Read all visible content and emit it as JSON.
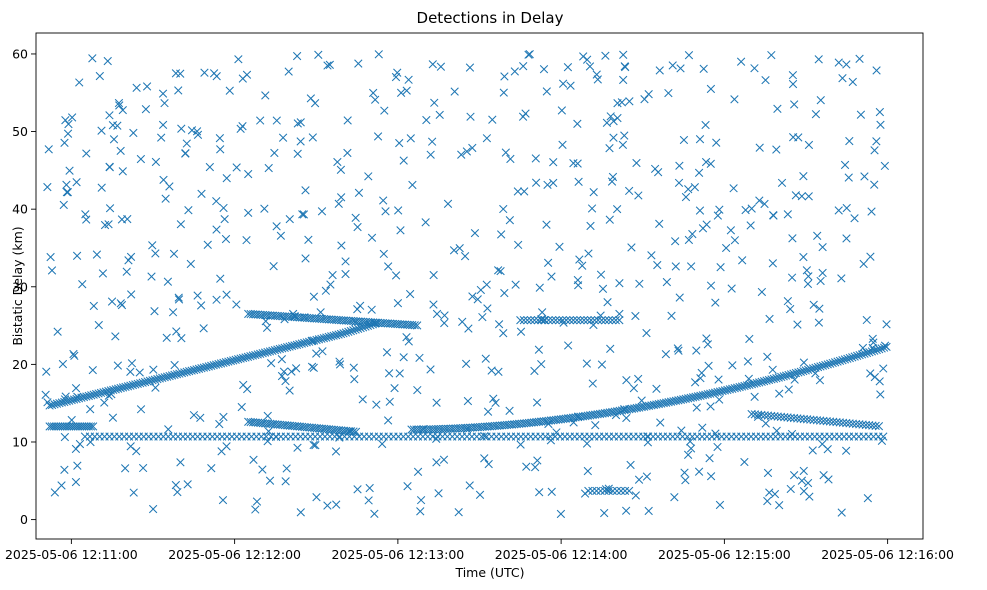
{
  "chart_data": {
    "type": "scatter",
    "title": "Detections in Delay",
    "xlabel": "Time (UTC)",
    "ylabel": "Bistatic Delay (km)",
    "marker": "x",
    "color": "#1f77b4",
    "grid": false,
    "legend": "none",
    "x_range": [
      "2025-05-06 12:10:47",
      "2025-05-06 12:16:13"
    ],
    "ylim": [
      -2.5,
      62.7
    ],
    "x_ticks": [
      {
        "t": "2025-05-06 12:11:00",
        "label": "2025-05-06 12:11:00"
      },
      {
        "t": "2025-05-06 12:12:00",
        "label": "2025-05-06 12:12:00"
      },
      {
        "t": "2025-05-06 12:13:00",
        "label": "2025-05-06 12:13:00"
      },
      {
        "t": "2025-05-06 12:14:00",
        "label": "2025-05-06 12:14:00"
      },
      {
        "t": "2025-05-06 12:15:00",
        "label": "2025-05-06 12:15:00"
      },
      {
        "t": "2025-05-06 12:16:00",
        "label": "2025-05-06 12:16:00"
      }
    ],
    "y_ticks": [
      0,
      10,
      20,
      30,
      40,
      50,
      60
    ],
    "tracks": [
      {
        "t_start": "2025-05-06 12:10:52",
        "t_end": "2025-05-06 12:12:40",
        "y_start": 14.7,
        "y_end": 24.0,
        "curve": 1.0,
        "step_s": 0.9
      },
      {
        "t_start": "2025-05-06 12:12:40",
        "t_end": "2025-05-06 12:12:53",
        "y_start": 24.0,
        "y_end": 25.4,
        "curve": 1.0,
        "step_s": 0.9
      },
      {
        "t_start": "2025-05-06 12:12:05",
        "t_end": "2025-05-06 12:13:08",
        "y_start": 26.5,
        "y_end": 25.0,
        "curve": 1.0,
        "step_s": 0.9
      },
      {
        "t_start": "2025-05-06 12:12:05",
        "t_end": "2025-05-06 12:12:45",
        "y_start": 12.6,
        "y_end": 11.3,
        "curve": 1.0,
        "step_s": 0.9
      },
      {
        "t_start": "2025-05-06 12:13:05",
        "t_end": "2025-05-06 12:16:00",
        "y_start": 11.6,
        "y_end": 22.3,
        "curve": 1.8,
        "step_s": 0.9
      },
      {
        "t_start": "2025-05-06 12:15:10",
        "t_end": "2025-05-06 12:15:58",
        "y_start": 13.6,
        "y_end": 12.0,
        "curve": 1.0,
        "step_s": 1.2
      },
      {
        "t_start": "2025-05-06 12:10:52",
        "t_end": "2025-05-06 12:11:08",
        "y_start": 12.0,
        "y_end": 12.0,
        "curve": 1.0,
        "step_s": 0.8
      },
      {
        "t_start": "2025-05-06 12:13:45",
        "t_end": "2025-05-06 12:14:22",
        "y_start": 25.7,
        "y_end": 25.7,
        "curve": 1.0,
        "step_s": 1.3
      },
      {
        "t_start": "2025-05-06 12:14:10",
        "t_end": "2025-05-06 12:14:25",
        "y_start": 3.7,
        "y_end": 3.7,
        "curve": 1.0,
        "step_s": 1.5
      }
    ],
    "band": {
      "t_start": "2025-05-06 12:11:05",
      "t_end": "2025-05-06 12:16:00",
      "y": 10.7,
      "step_s": 1.8
    },
    "noise": {
      "count": 720,
      "seed": 20250506,
      "t_start": "2025-05-06 12:10:50",
      "t_end": "2025-05-06 12:16:00",
      "y_min": 0.5,
      "y_max": 60.0
    }
  }
}
